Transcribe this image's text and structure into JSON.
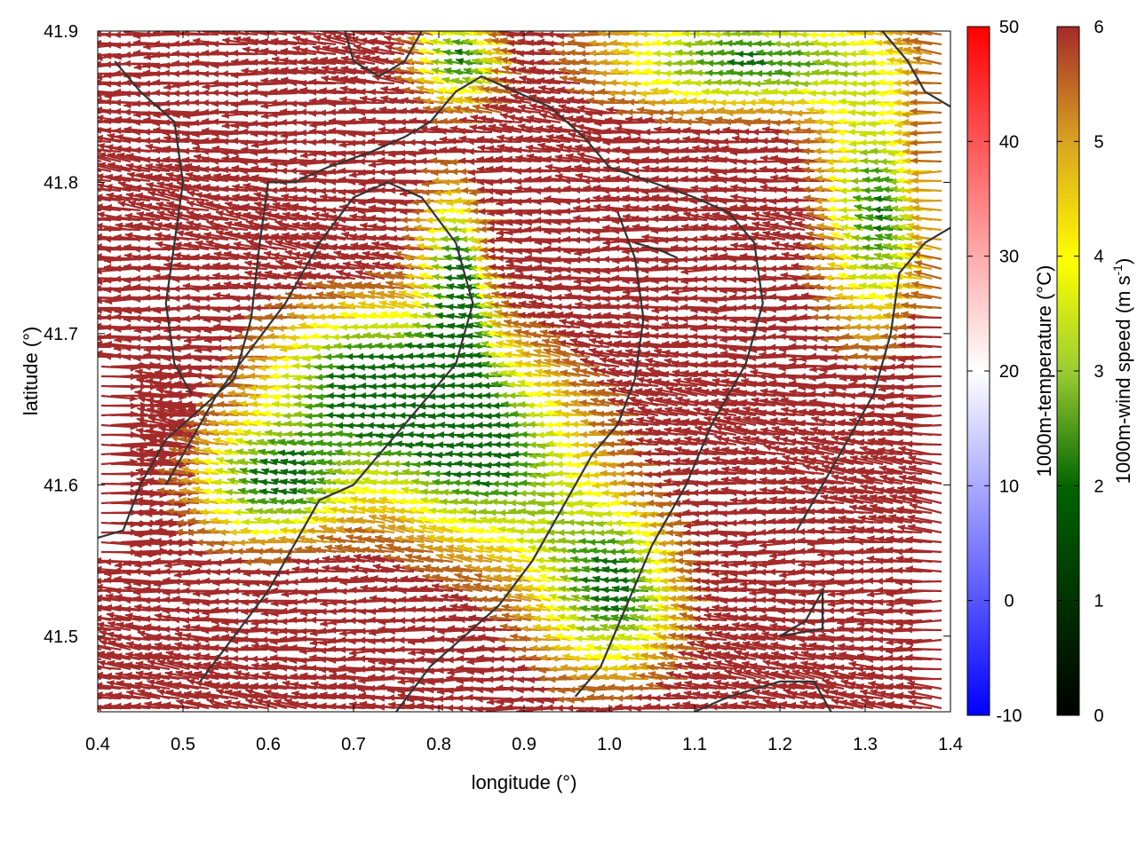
{
  "chart_data": {
    "type": "vector-field",
    "xlabel": "longitude (°)",
    "ylabel": "latitude (°)",
    "xlim": [
      0.4,
      1.4
    ],
    "ylim": [
      41.45,
      41.9
    ],
    "xticks": [
      "0.4",
      "0.5",
      "0.6",
      "0.7",
      "0.8",
      "0.9",
      "1.0",
      "1.1",
      "1.2",
      "1.3",
      "1.4"
    ],
    "yticks": [
      "41.5",
      "41.6",
      "41.7",
      "41.8",
      "41.9"
    ],
    "temperature_colorbar": {
      "label": "1000m-temperature (°C)",
      "range": [
        -10,
        50
      ],
      "ticks": [
        "50",
        "40",
        "30",
        "20",
        "10",
        "0",
        "-10"
      ],
      "colors": [
        "#0000ff",
        "#ffffff",
        "#ff0000"
      ]
    },
    "wind_colorbar": {
      "label": "1000m-wind speed (m s",
      "label_superscript": "-1",
      "label_end": ")",
      "range": [
        0,
        6
      ],
      "ticks": [
        "6",
        "5",
        "4",
        "3",
        "2",
        "1",
        "0"
      ],
      "colors": [
        "#000000",
        "#006400",
        "#9acd32",
        "#ffff00",
        "#daa520",
        "#b8860b",
        "#a52a2a"
      ]
    },
    "contour_color": "#333333",
    "dominant_arrow_color": "#a52a2a",
    "calm_zone_colors": [
      "#ffff00",
      "#9acd32",
      "#006400"
    ],
    "contours": [
      [
        [
          0.4,
          41.565
        ],
        [
          0.43,
          41.57
        ],
        [
          0.45,
          41.6
        ],
        [
          0.48,
          41.63
        ],
        [
          0.52,
          41.65
        ],
        [
          0.56,
          41.67
        ],
        [
          0.58,
          41.71
        ],
        [
          0.59,
          41.76
        ],
        [
          0.6,
          41.8
        ],
        [
          0.63,
          41.8
        ],
        [
          0.67,
          41.81
        ],
        [
          0.72,
          41.82
        ],
        [
          0.76,
          41.83
        ],
        [
          0.79,
          41.84
        ],
        [
          0.82,
          41.86
        ],
        [
          0.85,
          41.87
        ],
        [
          0.89,
          41.86
        ],
        [
          0.93,
          41.85
        ],
        [
          0.97,
          41.83
        ],
        [
          1.0,
          41.81
        ],
        [
          1.05,
          41.8
        ],
        [
          1.1,
          41.79
        ],
        [
          1.14,
          41.78
        ],
        [
          1.17,
          41.76
        ],
        [
          1.18,
          41.72
        ],
        [
          1.16,
          41.68
        ],
        [
          1.12,
          41.64
        ],
        [
          1.09,
          41.6
        ],
        [
          1.05,
          41.56
        ],
        [
          1.02,
          41.52
        ],
        [
          0.99,
          41.48
        ],
        [
          0.96,
          41.46
        ]
      ],
      [
        [
          0.52,
          41.47
        ],
        [
          0.56,
          41.5
        ],
        [
          0.6,
          41.53
        ],
        [
          0.63,
          41.56
        ],
        [
          0.66,
          41.59
        ],
        [
          0.7,
          41.6
        ],
        [
          0.73,
          41.62
        ],
        [
          0.76,
          41.64
        ],
        [
          0.79,
          41.66
        ],
        [
          0.82,
          41.68
        ],
        [
          0.84,
          41.72
        ],
        [
          0.82,
          41.76
        ],
        [
          0.78,
          41.79
        ],
        [
          0.74,
          41.8
        ],
        [
          0.7,
          41.79
        ],
        [
          0.66,
          41.76
        ],
        [
          0.62,
          41.72
        ],
        [
          0.58,
          41.69
        ],
        [
          0.54,
          41.66
        ],
        [
          0.51,
          41.63
        ],
        [
          0.48,
          41.6
        ]
      ],
      [
        [
          0.75,
          41.45
        ],
        [
          0.79,
          41.48
        ],
        [
          0.83,
          41.5
        ],
        [
          0.87,
          41.52
        ],
        [
          0.91,
          41.55
        ],
        [
          0.95,
          41.59
        ],
        [
          0.98,
          41.62
        ],
        [
          1.01,
          41.64
        ],
        [
          1.03,
          41.67
        ],
        [
          1.04,
          41.71
        ],
        [
          1.03,
          41.75
        ],
        [
          1.01,
          41.78
        ]
      ],
      [
        [
          1.1,
          41.45
        ],
        [
          1.14,
          41.46
        ],
        [
          1.2,
          41.47
        ],
        [
          1.24,
          41.47
        ],
        [
          1.26,
          41.45
        ]
      ],
      [
        [
          1.2,
          41.5
        ],
        [
          1.25,
          41.505
        ],
        [
          1.25,
          41.53
        ],
        [
          1.23,
          41.51
        ],
        [
          1.2,
          41.5
        ]
      ],
      [
        [
          1.22,
          41.57
        ],
        [
          1.25,
          41.6
        ],
        [
          1.28,
          41.63
        ],
        [
          1.31,
          41.66
        ],
        [
          1.33,
          41.7
        ],
        [
          1.34,
          41.74
        ],
        [
          1.37,
          41.76
        ],
        [
          1.4,
          41.77
        ]
      ],
      [
        [
          0.42,
          41.88
        ],
        [
          0.45,
          41.86
        ],
        [
          0.49,
          41.84
        ],
        [
          0.5,
          41.8
        ],
        [
          0.49,
          41.76
        ],
        [
          0.48,
          41.72
        ],
        [
          0.49,
          41.68
        ],
        [
          0.51,
          41.66
        ]
      ],
      [
        [
          0.69,
          41.9
        ],
        [
          0.7,
          41.88
        ],
        [
          0.73,
          41.87
        ],
        [
          0.76,
          41.88
        ],
        [
          0.78,
          41.9
        ]
      ],
      [
        [
          1.32,
          41.9
        ],
        [
          1.35,
          41.88
        ],
        [
          1.37,
          41.86
        ],
        [
          1.4,
          41.85
        ]
      ],
      [
        [
          1.03,
          41.76
        ],
        [
          1.06,
          41.755
        ],
        [
          1.08,
          41.75
        ]
      ]
    ]
  }
}
